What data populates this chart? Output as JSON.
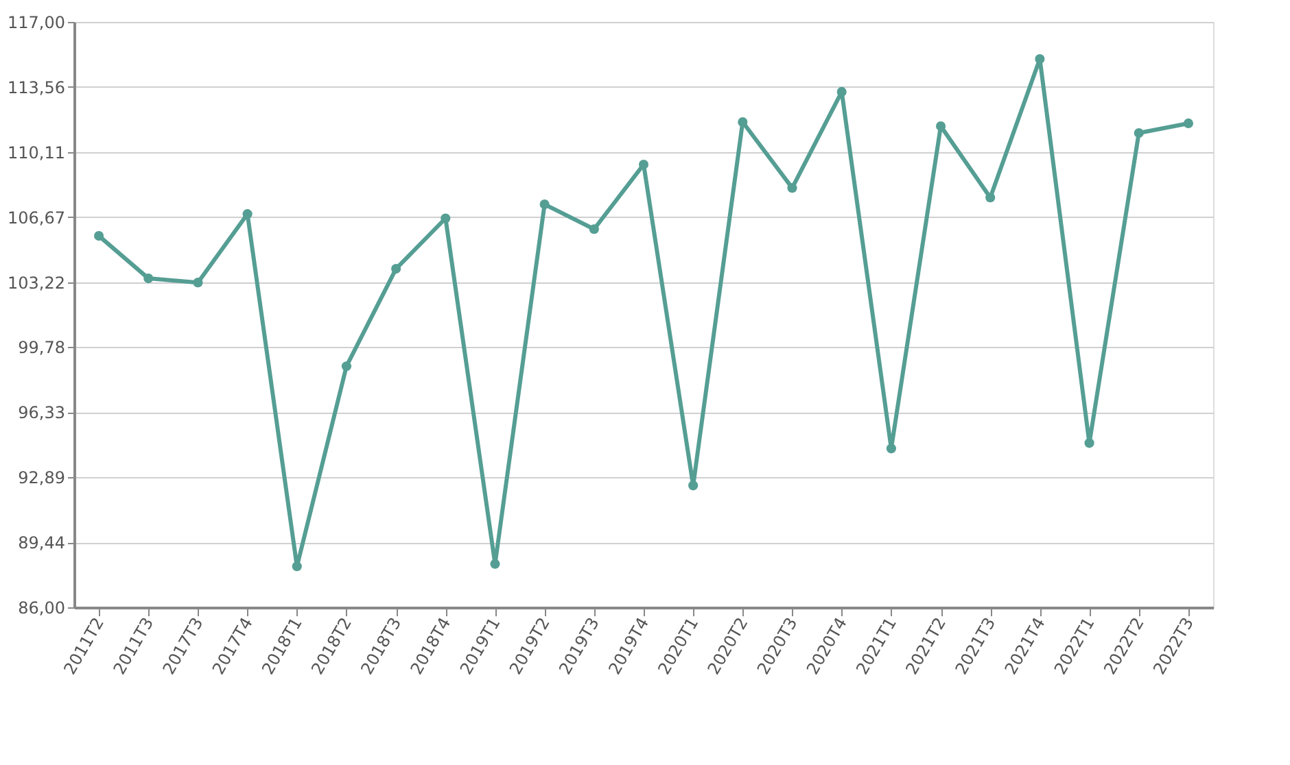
{
  "chart_data": {
    "type": "line",
    "categories": [
      "2011T2",
      "2011T3",
      "2017T3",
      "2017T4",
      "2018T1",
      "2018T2",
      "2018T3",
      "2018T4",
      "2019T1",
      "2019T2",
      "2019T3",
      "2019T4",
      "2020T1",
      "2020T2",
      "2020T3",
      "2020T4",
      "2021T1",
      "2021T2",
      "2021T3",
      "2021T4",
      "2022T1",
      "2022T2",
      "2022T3"
    ],
    "series": [
      {
        "color": "#559e94",
        "values": [
          105.67,
          103.42,
          103.2,
          106.83,
          88.17,
          98.77,
          103.93,
          106.6,
          88.3,
          107.34,
          106.03,
          109.45,
          92.45,
          111.7,
          108.21,
          113.3,
          94.41,
          111.48,
          107.7,
          115.04,
          94.7,
          111.12,
          111.63
        ]
      }
    ],
    "ylim": [
      86,
      117
    ],
    "yticks": [
      {
        "value": 86,
        "label": "86,00"
      },
      {
        "value": 89.44,
        "label": "89,44"
      },
      {
        "value": 92.89,
        "label": "92,89"
      },
      {
        "value": 96.33,
        "label": "96,33"
      },
      {
        "value": 99.78,
        "label": "99,78"
      },
      {
        "value": 103.22,
        "label": "103,22"
      },
      {
        "value": 106.67,
        "label": "106,67"
      },
      {
        "value": 110.11,
        "label": "110,11"
      },
      {
        "value": 113.56,
        "label": "113,56"
      },
      {
        "value": 117,
        "label": "117,00"
      }
    ],
    "grid": "y",
    "marker": "circle",
    "line_style": "solid"
  }
}
